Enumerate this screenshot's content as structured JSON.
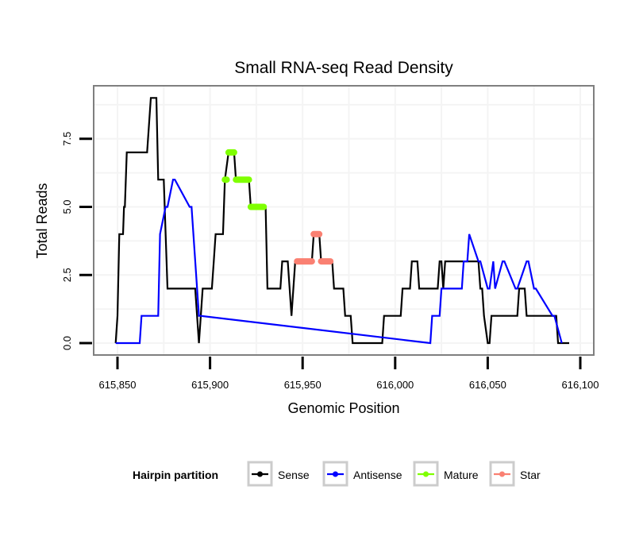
{
  "chart_data": {
    "type": "line",
    "title": "Small RNA-seq Read Density",
    "xlabel": "Genomic Position",
    "ylabel": "Total Reads",
    "xlim": [
      615837,
      616107
    ],
    "ylim": [
      -0.4,
      9.5
    ],
    "x_ticks": [
      615850,
      615900,
      615950,
      616000,
      616050,
      616100
    ],
    "x_tick_labels": [
      "615,850",
      "615,900",
      "615,950",
      "616,000",
      "616,050",
      "616,100"
    ],
    "y_ticks": [
      0.0,
      2.5,
      5.0,
      7.5
    ],
    "y_tick_labels": [
      "0.0",
      "2.5",
      "5.0",
      "7.5"
    ],
    "grid": true,
    "legend": {
      "title": "Hairpin partition",
      "position": "bottom",
      "entries": [
        {
          "name": "Sense",
          "color": "#000000"
        },
        {
          "name": "Antisense",
          "color": "#0000ff"
        },
        {
          "name": "Mature",
          "color": "#7fff00"
        },
        {
          "name": "Star",
          "color": "#fa8072"
        }
      ]
    },
    "series": [
      {
        "name": "Sense",
        "color": "#000000",
        "style": "line",
        "x": [
          615849,
          615850,
          615851,
          615853,
          615853.5,
          615854,
          615855,
          615866,
          615868,
          615871,
          615872,
          615875,
          615877,
          615892,
          615894,
          615896,
          615901,
          615902,
          615903,
          615907,
          615908,
          615910,
          615913,
          615914,
          615921,
          615922,
          615930,
          615931,
          615938,
          615939,
          615942,
          615944,
          615946,
          615955,
          615956,
          615959,
          615960,
          615966,
          615967,
          615972,
          615973,
          615976,
          615977,
          615993,
          615994,
          616003,
          616004,
          616008,
          616009,
          616012,
          616013,
          616023,
          616024,
          616025,
          616026,
          616027,
          616045,
          616046,
          616047,
          616048,
          616050,
          616051,
          616052,
          616066,
          616067,
          616070,
          616071,
          616087,
          616088,
          616094
        ],
        "y": [
          0,
          1,
          4,
          4,
          5,
          5,
          7,
          7,
          9,
          9,
          6,
          6,
          2,
          2,
          0,
          2,
          2,
          3,
          4,
          4,
          6,
          7,
          7,
          6,
          6,
          5,
          5,
          2,
          2,
          3,
          3,
          1,
          3,
          3,
          4,
          4,
          3,
          3,
          2,
          2,
          1,
          1,
          0,
          0,
          1,
          1,
          2,
          2,
          3,
          3,
          2,
          2,
          3,
          3,
          2,
          3,
          3,
          2,
          2,
          1,
          0,
          0,
          1,
          1,
          2,
          2,
          1,
          1,
          0,
          0
        ]
      },
      {
        "name": "Antisense",
        "color": "#0000ff",
        "style": "line",
        "x": [
          615849,
          615862,
          615863,
          615872,
          615873,
          615876,
          615877,
          615880,
          615881,
          615889,
          615890,
          615894,
          615895,
          616019,
          616020,
          616024,
          616025,
          616036,
          616037,
          616039,
          616040,
          616045,
          616046,
          616050,
          616051,
          616053,
          616054,
          616058,
          616059,
          616065,
          616066,
          616071,
          616072,
          616075,
          616076,
          616085,
          616086,
          616090
        ],
        "y": [
          0,
          0,
          1,
          1,
          4,
          5,
          5,
          6,
          6,
          5,
          5,
          1,
          1,
          0,
          1,
          1,
          2,
          2,
          3,
          3,
          4,
          3,
          3,
          2,
          2,
          3,
          2,
          3,
          3,
          2,
          2,
          3,
          3,
          2,
          2,
          1,
          1,
          0
        ]
      },
      {
        "name": "Mature",
        "color": "#7fff00",
        "style": "points",
        "segments": [
          {
            "x": [
              615908,
              615909
            ],
            "y": 6
          },
          {
            "x": [
              615910,
              615913
            ],
            "y": 7
          },
          {
            "x": [
              615914,
              615921
            ],
            "y": 6
          },
          {
            "x": [
              615922,
              615929
            ],
            "y": 5
          }
        ]
      },
      {
        "name": "Star",
        "color": "#fa8072",
        "style": "points",
        "segments": [
          {
            "x": [
              615947,
              615955
            ],
            "y": 3
          },
          {
            "x": [
              615956,
              615959
            ],
            "y": 4
          },
          {
            "x": [
              615960,
              615965
            ],
            "y": 3
          }
        ]
      }
    ]
  }
}
